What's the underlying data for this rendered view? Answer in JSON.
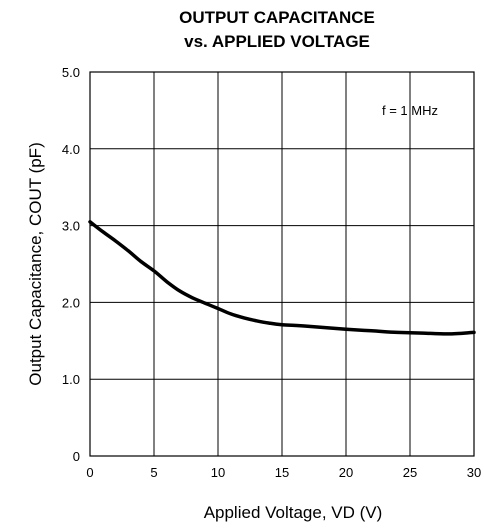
{
  "chart_data": {
    "type": "line",
    "title_line1": "OUTPUT CAPACITANCE",
    "title_line2": "vs. APPLIED VOLTAGE",
    "xlabel": "Applied Voltage, VD (V)",
    "ylabel": "Output Capacitance, COUT (pF)",
    "xlim": [
      0,
      30
    ],
    "ylim": [
      0,
      5
    ],
    "x_ticks": [
      0,
      5,
      10,
      15,
      20,
      25,
      30
    ],
    "y_ticks": [
      0,
      1,
      2,
      3,
      4,
      5
    ],
    "x_tick_labels": [
      "0",
      "5",
      "10",
      "15",
      "20",
      "25",
      "30"
    ],
    "y_tick_labels": [
      "0",
      "1.0",
      "2.0",
      "3.0",
      "4.0",
      "5.0"
    ],
    "annotation": "f = 1 MHz",
    "grid": true,
    "series": [
      {
        "x": [
          0,
          1,
          2,
          3,
          4,
          5,
          6,
          7,
          8,
          9,
          10,
          11,
          12,
          13,
          14,
          15,
          17,
          20,
          22,
          24,
          26,
          28,
          30
        ],
        "values": [
          3.05,
          2.92,
          2.8,
          2.67,
          2.53,
          2.41,
          2.27,
          2.15,
          2.06,
          1.99,
          1.92,
          1.85,
          1.8,
          1.76,
          1.73,
          1.71,
          1.69,
          1.65,
          1.63,
          1.61,
          1.6,
          1.59,
          1.61
        ]
      }
    ]
  }
}
